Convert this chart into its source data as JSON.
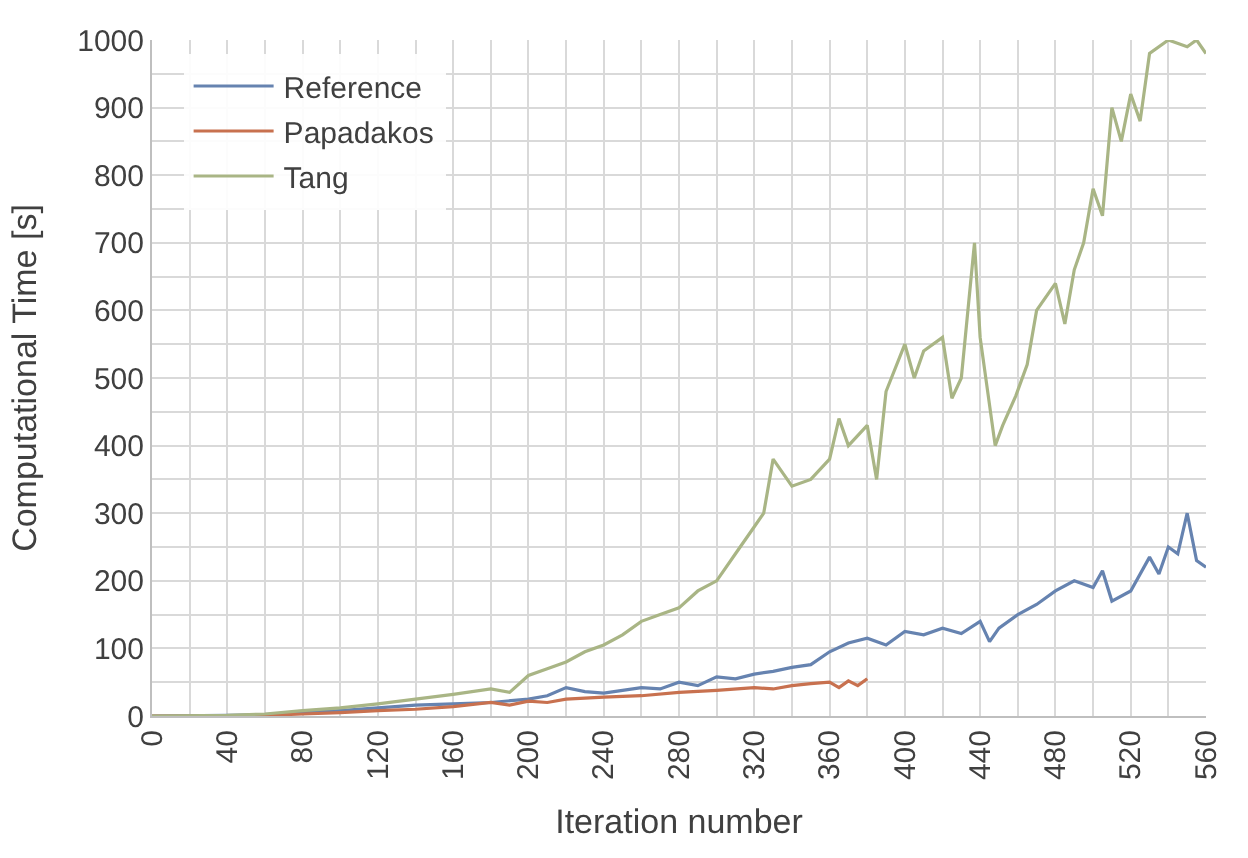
{
  "chart_data": {
    "type": "line",
    "xlabel": "Iteration number",
    "ylabel": "Computational Time [s]",
    "xlim": [
      0,
      560
    ],
    "xticks": [
      0,
      40,
      80,
      120,
      160,
      200,
      240,
      280,
      320,
      360,
      400,
      440,
      480,
      520,
      560
    ],
    "ylim": [
      0,
      1000
    ],
    "yticks": [
      0,
      100,
      200,
      300,
      400,
      500,
      600,
      700,
      800,
      900,
      1000
    ],
    "grid": true,
    "legend": "top left",
    "line_style": "solid",
    "marker": "none",
    "series": [
      {
        "name": "Reference",
        "color": "#6683b0",
        "x": [
          0,
          40,
          60,
          80,
          100,
          120,
          140,
          160,
          180,
          200,
          210,
          220,
          230,
          240,
          250,
          260,
          270,
          280,
          290,
          300,
          310,
          320,
          330,
          340,
          350,
          360,
          370,
          380,
          390,
          400,
          410,
          420,
          430,
          440,
          445,
          450,
          460,
          470,
          480,
          490,
          500,
          505,
          510,
          520,
          530,
          535,
          540,
          545,
          550,
          555,
          560
        ],
        "values": [
          0,
          1,
          2,
          5,
          8,
          12,
          16,
          18,
          20,
          25,
          30,
          42,
          36,
          34,
          38,
          42,
          40,
          50,
          45,
          58,
          55,
          62,
          66,
          72,
          76,
          95,
          108,
          115,
          105,
          125,
          120,
          130,
          122,
          140,
          110,
          130,
          150,
          165,
          185,
          200,
          190,
          215,
          170,
          185,
          235,
          210,
          250,
          240,
          300,
          230,
          220
        ]
      },
      {
        "name": "Papadakos",
        "color": "#c8714f",
        "x": [
          0,
          40,
          60,
          80,
          100,
          120,
          140,
          160,
          180,
          190,
          200,
          210,
          220,
          240,
          260,
          280,
          300,
          320,
          330,
          340,
          350,
          360,
          365,
          370,
          375,
          380
        ],
        "values": [
          0,
          0,
          1,
          3,
          5,
          8,
          10,
          14,
          20,
          16,
          22,
          20,
          25,
          28,
          30,
          35,
          38,
          42,
          40,
          45,
          48,
          50,
          42,
          52,
          45,
          55
        ]
      },
      {
        "name": "Tang",
        "color": "#a9b585",
        "x": [
          0,
          40,
          60,
          80,
          100,
          120,
          140,
          160,
          180,
          190,
          200,
          210,
          220,
          230,
          240,
          250,
          260,
          270,
          280,
          290,
          300,
          310,
          320,
          325,
          330,
          340,
          350,
          360,
          365,
          370,
          380,
          385,
          390,
          400,
          405,
          410,
          420,
          425,
          430,
          437,
          440,
          448,
          452,
          459,
          465,
          470,
          480,
          485,
          490,
          495,
          500,
          505,
          510,
          515,
          520,
          525,
          530,
          540,
          550,
          555,
          560
        ],
        "values": [
          0,
          1,
          3,
          8,
          12,
          18,
          25,
          32,
          40,
          35,
          60,
          70,
          80,
          95,
          105,
          120,
          140,
          150,
          160,
          185,
          200,
          240,
          280,
          300,
          380,
          340,
          350,
          380,
          440,
          400,
          430,
          350,
          480,
          550,
          500,
          540,
          560,
          470,
          500,
          700,
          560,
          400,
          430,
          474,
          520,
          600,
          640,
          580,
          660,
          700,
          780,
          740,
          900,
          850,
          920,
          880,
          980,
          1000,
          990,
          1000,
          980
        ]
      }
    ]
  }
}
